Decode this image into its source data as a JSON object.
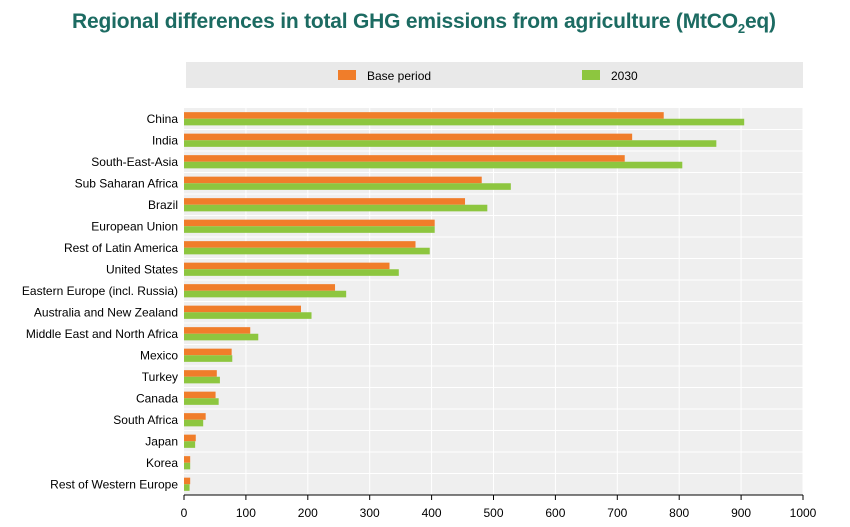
{
  "chart_data": {
    "type": "bar",
    "orientation": "horizontal",
    "title": {
      "main": "Regional differences in total GHG emissions from agriculture (MtCO",
      "sub": "2",
      "end": "eq)"
    },
    "categories": [
      "China",
      "India",
      "South-East-Asia",
      "Sub Saharan Africa",
      "Brazil",
      "European Union",
      "Rest of Latin America",
      "United States",
      "Eastern Europe (incl. Russia)",
      "Australia and New Zealand",
      "Middle East and North Africa",
      "Mexico",
      "Turkey",
      "Canada",
      "South Africa",
      "Japan",
      "Korea",
      "Rest of Western Europe"
    ],
    "series": [
      {
        "name": "Base period",
        "color": "#f07d2a",
        "values": [
          775,
          724,
          712,
          481,
          454,
          405,
          374,
          332,
          244,
          189,
          107,
          77,
          53,
          51,
          35,
          19,
          10,
          10
        ]
      },
      {
        "name": "2030",
        "color": "#8dc63f",
        "values": [
          905,
          860,
          805,
          528,
          490,
          405,
          397,
          347,
          262,
          206,
          120,
          78,
          58,
          56,
          31,
          18,
          10,
          9
        ]
      }
    ],
    "xlim": [
      0,
      1000
    ],
    "xticks": [
      0,
      100,
      200,
      300,
      400,
      500,
      600,
      700,
      800,
      900,
      1000
    ],
    "grid": true,
    "legend": "top",
    "plot_background": "#efefef"
  }
}
